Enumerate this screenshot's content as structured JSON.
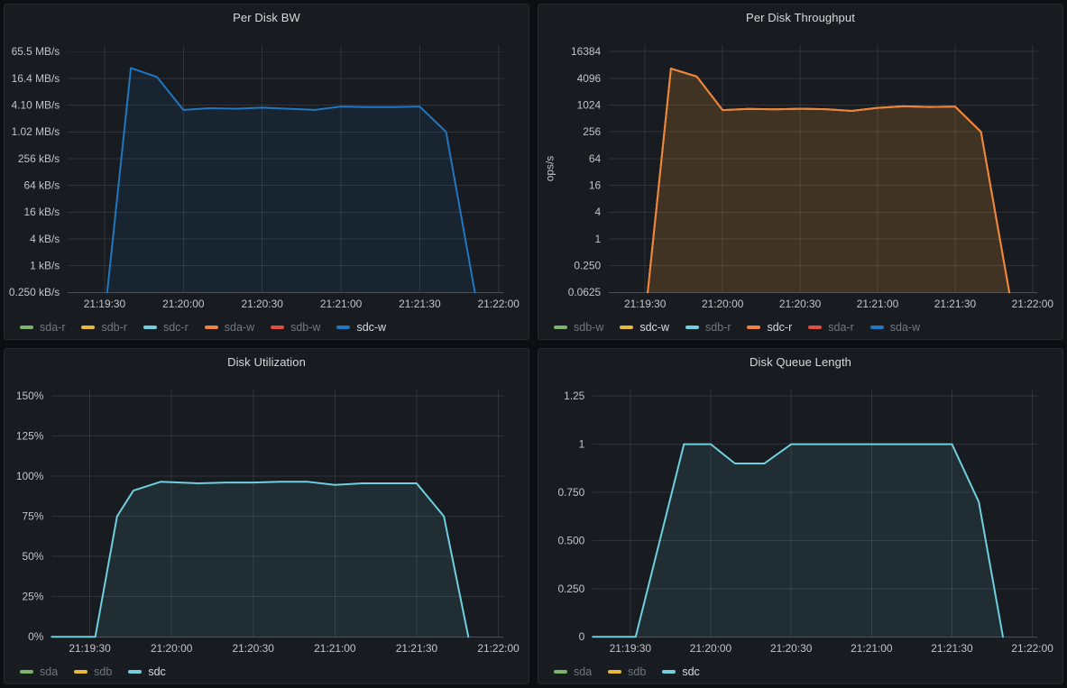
{
  "theme": {
    "page_background": "#0d0e12",
    "panel_background": "#181b1f",
    "panel_border": "#26282e",
    "title_color": "#d8d9da",
    "axis_text_color": "#c2c4c9",
    "grid_color": "rgba(210,215,225,0.13)",
    "axis_line_color": "#4d5057",
    "legend_dim_color": "#73787e",
    "legend_active_color": "#dcdde1"
  },
  "palette": {
    "green": "#7EB26D",
    "yellow": "#EAB839",
    "cyan": "#6ED0E0",
    "orange": "#EF843C",
    "red": "#E24D42",
    "blue": "#1F78C1"
  },
  "chart_data": [
    {
      "id": "per-disk-bw",
      "type": "area",
      "title": "Per Disk BW",
      "xlabel": "",
      "ylabel": "",
      "grid": true,
      "legend_position": "bottom",
      "x_domain": [
        "21:19:16",
        "21:22:02"
      ],
      "x_ticks": [
        "21:19:30",
        "21:20:00",
        "21:20:30",
        "21:21:00",
        "21:21:30",
        "21:22:00"
      ],
      "y_axis": {
        "scale": "log4",
        "unit": "kB/s",
        "domain": [
          0.25,
          93000
        ],
        "ticks": [
          {
            "value": 65536,
            "label": "65.5 MB/s"
          },
          {
            "value": 16384,
            "label": "16.4 MB/s"
          },
          {
            "value": 4096,
            "label": "4.10 MB/s"
          },
          {
            "value": 1024,
            "label": "1.02 MB/s"
          },
          {
            "value": 256,
            "label": "256 kB/s"
          },
          {
            "value": 64,
            "label": "64 kB/s"
          },
          {
            "value": 16,
            "label": "16 kB/s"
          },
          {
            "value": 4,
            "label": "4 kB/s"
          },
          {
            "value": 1,
            "label": "1 kB/s"
          },
          {
            "value": 0.25,
            "label": "0.250 kB/s"
          }
        ]
      },
      "series": [
        {
          "name": "sda-r",
          "color": "#7EB26D",
          "active": false,
          "points": []
        },
        {
          "name": "sdb-r",
          "color": "#EAB839",
          "active": false,
          "points": []
        },
        {
          "name": "sdc-r",
          "color": "#6ED0E0",
          "active": false,
          "points": []
        },
        {
          "name": "sda-w",
          "color": "#EF843C",
          "active": false,
          "points": []
        },
        {
          "name": "sdb-w",
          "color": "#E24D42",
          "active": false,
          "points": []
        },
        {
          "name": "sdc-w",
          "color": "#1F78C1",
          "active": true,
          "points": [
            [
              "21:19:31",
              0.25
            ],
            [
              "21:19:40",
              28000
            ],
            [
              "21:19:50",
              17500
            ],
            [
              "21:20:00",
              3200
            ],
            [
              "21:20:10",
              3500
            ],
            [
              "21:20:20",
              3400
            ],
            [
              "21:20:30",
              3600
            ],
            [
              "21:20:40",
              3400
            ],
            [
              "21:20:50",
              3200
            ],
            [
              "21:21:00",
              3800
            ],
            [
              "21:21:10",
              3700
            ],
            [
              "21:21:20",
              3700
            ],
            [
              "21:21:30",
              3800
            ],
            [
              "21:21:40",
              1024
            ],
            [
              "21:21:51",
              0.25
            ]
          ]
        }
      ]
    },
    {
      "id": "per-disk-throughput",
      "type": "area",
      "title": "Per Disk Throughput",
      "xlabel": "",
      "ylabel": "ops/s",
      "grid": true,
      "legend_position": "bottom",
      "x_domain": [
        "21:19:16",
        "21:22:02"
      ],
      "x_ticks": [
        "21:19:30",
        "21:20:00",
        "21:20:30",
        "21:21:00",
        "21:21:30",
        "21:22:00"
      ],
      "y_axis": {
        "scale": "log4",
        "unit": "ops/s",
        "domain": [
          0.0625,
          23200
        ],
        "ticks": [
          {
            "value": 16384,
            "label": "16384"
          },
          {
            "value": 4096,
            "label": "4096"
          },
          {
            "value": 1024,
            "label": "1024"
          },
          {
            "value": 256,
            "label": "256"
          },
          {
            "value": 64,
            "label": "64"
          },
          {
            "value": 16,
            "label": "16"
          },
          {
            "value": 4,
            "label": "4"
          },
          {
            "value": 1,
            "label": "1"
          },
          {
            "value": 0.25,
            "label": "0.250"
          },
          {
            "value": 0.0625,
            "label": "0.0625"
          }
        ]
      },
      "series": [
        {
          "name": "sdb-w",
          "color": "#7EB26D",
          "active": false,
          "points": []
        },
        {
          "name": "sdc-w",
          "color": "#EAB839",
          "active": true,
          "points": [
            [
              "21:19:31",
              0.0625
            ],
            [
              "21:19:40",
              6800
            ],
            [
              "21:19:50",
              4500
            ],
            [
              "21:20:00",
              790
            ],
            [
              "21:20:10",
              840
            ],
            [
              "21:20:20",
              820
            ],
            [
              "21:20:30",
              850
            ],
            [
              "21:20:40",
              830
            ],
            [
              "21:20:50",
              760
            ],
            [
              "21:21:00",
              890
            ],
            [
              "21:21:10",
              960
            ],
            [
              "21:21:20",
              930
            ],
            [
              "21:21:30",
              950
            ],
            [
              "21:21:40",
              256
            ],
            [
              "21:21:51",
              0.0625
            ]
          ]
        },
        {
          "name": "sdb-r",
          "color": "#6ED0E0",
          "active": false,
          "points": []
        },
        {
          "name": "sdc-r",
          "color": "#EF843C",
          "active": true,
          "points": [
            [
              "21:19:31",
              0.0625
            ],
            [
              "21:19:40",
              6800
            ],
            [
              "21:19:50",
              4500
            ],
            [
              "21:20:00",
              790
            ],
            [
              "21:20:10",
              840
            ],
            [
              "21:20:20",
              820
            ],
            [
              "21:20:30",
              850
            ],
            [
              "21:20:40",
              830
            ],
            [
              "21:20:50",
              760
            ],
            [
              "21:21:00",
              890
            ],
            [
              "21:21:10",
              960
            ],
            [
              "21:21:20",
              930
            ],
            [
              "21:21:30",
              950
            ],
            [
              "21:21:40",
              256
            ],
            [
              "21:21:51",
              0.0625
            ]
          ]
        },
        {
          "name": "sda-r",
          "color": "#E24D42",
          "active": false,
          "points": []
        },
        {
          "name": "sda-w",
          "color": "#1F78C1",
          "active": false,
          "points": []
        }
      ]
    },
    {
      "id": "disk-utilization",
      "type": "area",
      "title": "Disk Utilization",
      "xlabel": "",
      "ylabel": "",
      "grid": true,
      "legend_position": "bottom",
      "x_domain": [
        "21:19:16",
        "21:22:02"
      ],
      "x_ticks": [
        "21:19:30",
        "21:20:00",
        "21:20:30",
        "21:21:00",
        "21:21:30",
        "21:22:00"
      ],
      "y_axis": {
        "scale": "linear",
        "unit": "%",
        "domain": [
          0,
          154
        ],
        "ticks": [
          {
            "value": 150,
            "label": "150%"
          },
          {
            "value": 125,
            "label": "125%"
          },
          {
            "value": 100,
            "label": "100%"
          },
          {
            "value": 75,
            "label": "75%"
          },
          {
            "value": 50,
            "label": "50%"
          },
          {
            "value": 25,
            "label": "25%"
          },
          {
            "value": 0,
            "label": "0%"
          }
        ]
      },
      "series": [
        {
          "name": "sda",
          "color": "#7EB26D",
          "active": false,
          "points": []
        },
        {
          "name": "sdb",
          "color": "#EAB839",
          "active": false,
          "points": []
        },
        {
          "name": "sdc",
          "color": "#6ED0E0",
          "active": true,
          "points": [
            [
              "21:19:16",
              0
            ],
            [
              "21:19:32",
              0
            ],
            [
              "21:19:40",
              75
            ],
            [
              "21:19:46",
              91
            ],
            [
              "21:19:56",
              96.5
            ],
            [
              "21:20:10",
              95.5
            ],
            [
              "21:20:20",
              96
            ],
            [
              "21:20:30",
              96
            ],
            [
              "21:20:40",
              96.5
            ],
            [
              "21:20:50",
              96.5
            ],
            [
              "21:21:00",
              94.5
            ],
            [
              "21:21:10",
              95.5
            ],
            [
              "21:21:20",
              95.5
            ],
            [
              "21:21:30",
              95.5
            ],
            [
              "21:21:40",
              75
            ],
            [
              "21:21:49",
              0
            ]
          ]
        }
      ]
    },
    {
      "id": "disk-queue-length",
      "type": "area",
      "title": "Disk Queue Length",
      "xlabel": "",
      "ylabel": "",
      "grid": true,
      "legend_position": "bottom",
      "x_domain": [
        "21:19:16",
        "21:22:02"
      ],
      "x_ticks": [
        "21:19:30",
        "21:20:00",
        "21:20:30",
        "21:21:00",
        "21:21:30",
        "21:22:00"
      ],
      "y_axis": {
        "scale": "linear",
        "unit": "",
        "domain": [
          0,
          1.285
        ],
        "ticks": [
          {
            "value": 1.25,
            "label": "1.25"
          },
          {
            "value": 1,
            "label": "1"
          },
          {
            "value": 0.75,
            "label": "0.750"
          },
          {
            "value": 0.5,
            "label": "0.500"
          },
          {
            "value": 0.25,
            "label": "0.250"
          },
          {
            "value": 0,
            "label": "0"
          }
        ]
      },
      "series": [
        {
          "name": "sda",
          "color": "#7EB26D",
          "active": false,
          "points": []
        },
        {
          "name": "sdb",
          "color": "#EAB839",
          "active": false,
          "points": []
        },
        {
          "name": "sdc",
          "color": "#6ED0E0",
          "active": true,
          "points": [
            [
              "21:19:16",
              0
            ],
            [
              "21:19:32",
              0
            ],
            [
              "21:19:41",
              0.5
            ],
            [
              "21:19:50",
              1
            ],
            [
              "21:20:00",
              1
            ],
            [
              "21:20:09",
              0.9
            ],
            [
              "21:20:20",
              0.9
            ],
            [
              "21:20:30",
              1
            ],
            [
              "21:20:40",
              1
            ],
            [
              "21:20:50",
              1
            ],
            [
              "21:21:00",
              1
            ],
            [
              "21:21:10",
              1
            ],
            [
              "21:21:20",
              1
            ],
            [
              "21:21:30",
              1
            ],
            [
              "21:21:40",
              0.7
            ],
            [
              "21:21:49",
              0
            ]
          ]
        }
      ]
    }
  ]
}
